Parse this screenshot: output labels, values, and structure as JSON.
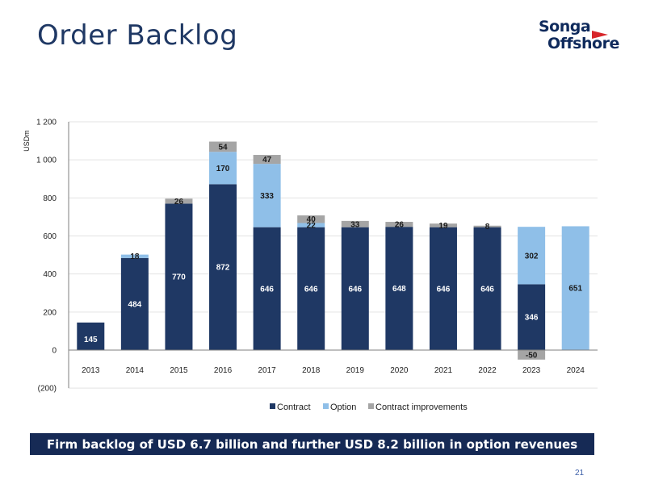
{
  "page": {
    "title": "Order Backlog",
    "banner": "Firm backlog of USD 6.7 billion and further USD 8.2 billion in option revenues",
    "page_number": "21",
    "logo": {
      "line1": "Songa",
      "line2": "Offshore"
    }
  },
  "colors": {
    "contract": "#1f3864",
    "option": "#8fbfe8",
    "improvements": "#a5a5a5",
    "title": "#1f3864"
  },
  "chart_data": {
    "type": "bar",
    "stacked": true,
    "ylabel": "USDm",
    "ylim": [
      -200,
      1200
    ],
    "yticks": [
      -200,
      0,
      200,
      400,
      600,
      800,
      1000,
      1200
    ],
    "ytick_labels": [
      "(200)",
      "0",
      "200",
      "400",
      "600",
      "800",
      "1 000",
      "1 200"
    ],
    "categories": [
      "2013",
      "2014",
      "2015",
      "2016",
      "2017",
      "2018",
      "2019",
      "2020",
      "2021",
      "2022",
      "2023",
      "2024"
    ],
    "series": [
      {
        "name": "Contract",
        "color": "#1f3864",
        "label_color": "#ffffff",
        "values": [
          145,
          484,
          770,
          872,
          646,
          646,
          646,
          648,
          646,
          646,
          346,
          0
        ],
        "labels": [
          "145",
          "484",
          "770",
          "872",
          "646",
          "646",
          "646",
          "648",
          "646",
          "646",
          "346",
          ""
        ]
      },
      {
        "name": "Option",
        "color": "#8fbfe8",
        "label_color": "#1a1a1a",
        "values": [
          0,
          18,
          0,
          170,
          333,
          22,
          0,
          0,
          0,
          0,
          302,
          651
        ],
        "labels": [
          "",
          "18",
          "",
          "170",
          "333",
          "22",
          "",
          "",
          "",
          "",
          "302",
          "651"
        ]
      },
      {
        "name": "Contract improvements",
        "color": "#a5a5a5",
        "label_color": "#1a1a1a",
        "values": [
          0,
          0,
          26,
          54,
          47,
          40,
          33,
          26,
          19,
          8,
          -50,
          0
        ],
        "labels": [
          "",
          "",
          "26",
          "54",
          "47",
          "40",
          "33",
          "26",
          "19",
          "8",
          "-50",
          ""
        ]
      }
    ],
    "legend": {
      "position": "bottom",
      "entries": [
        "Contract",
        "Option",
        "Contract improvements"
      ]
    },
    "grid": true
  }
}
